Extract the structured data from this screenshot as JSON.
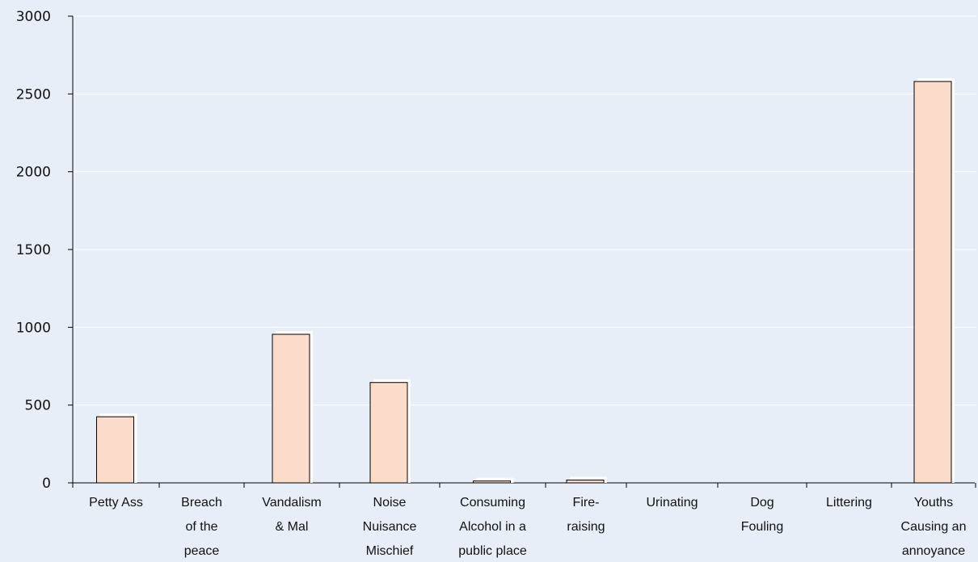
{
  "chart_data": {
    "type": "bar",
    "title": "",
    "xlabel": "",
    "ylabel": "",
    "categories": [
      [
        "Petty Ass"
      ],
      [
        "Breach",
        "of the",
        "peace"
      ],
      [
        "Vandalism",
        "& Mal"
      ],
      [
        "Noise",
        "Nuisance",
        "Mischief"
      ],
      [
        "Consuming",
        "Alcohol in a",
        "public place"
      ],
      [
        "Fire-",
        "raising"
      ],
      [
        "Urinating"
      ],
      [
        "Dog",
        "Fouling"
      ],
      [
        "Littering"
      ],
      [
        "Youths",
        "Causing an",
        "annoyance"
      ]
    ],
    "values": [
      425,
      0,
      955,
      645,
      12,
      18,
      0,
      0,
      0,
      2580
    ],
    "ylim": [
      0,
      3000
    ],
    "yticks": [
      0,
      500,
      1000,
      1500,
      2000,
      2500,
      3000
    ],
    "grid": true,
    "legend": "none",
    "colors": {
      "background": "#e8eef8",
      "bar_fill": "#fbdcca",
      "bar_stroke": "#000000",
      "bar_shadow": "#ffffff",
      "grid": "#ffffff",
      "axis": "#000000",
      "text": "#111111"
    }
  }
}
